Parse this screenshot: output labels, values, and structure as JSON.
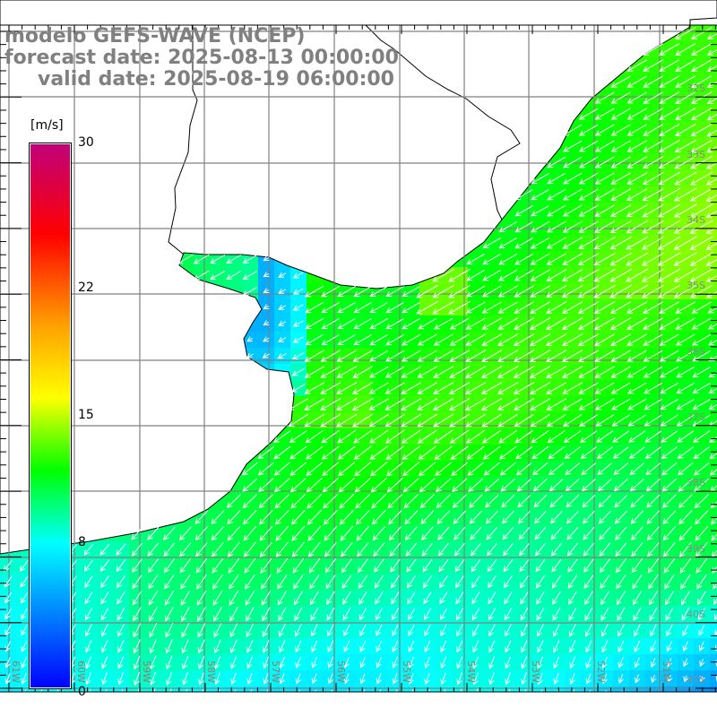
{
  "header": {
    "line1": "modelo GEFS-WAVE (NCEP)",
    "line2": "forecast date: 2025-08-13 00:00:00",
    "line3": "valid date: 2025-08-19 06:00:00"
  },
  "colorbar": {
    "unit": "[m/s]",
    "ticks": [
      "30",
      "22",
      "15",
      "8",
      "0"
    ],
    "tick_values": [
      30,
      22,
      15,
      8,
      0
    ],
    "range": [
      0,
      30
    ],
    "stops": [
      {
        "v": 0,
        "c": "#0000ff"
      },
      {
        "v": 8,
        "c": "#00ffff"
      },
      {
        "v": 12,
        "c": "#00ff00"
      },
      {
        "v": 16,
        "c": "#ffff00"
      },
      {
        "v": 20,
        "c": "#ffa000"
      },
      {
        "v": 25,
        "c": "#ff0000"
      },
      {
        "v": 30,
        "c": "#c0007a"
      }
    ]
  },
  "map": {
    "lat_labels": [
      "32S",
      "33S",
      "34S",
      "35S",
      "36S",
      "37S",
      "38S",
      "39S",
      "40S",
      "41S"
    ],
    "lon_labels": [
      "61W",
      "60W",
      "59W",
      "58W",
      "57W",
      "56W",
      "55W",
      "54W",
      "53W",
      "52W",
      "51W"
    ],
    "grid_color": "#808080",
    "land_color": "#ffffff",
    "coast_color": "#000000",
    "arrow_color": "#ffffff",
    "variable": "wind speed and direction"
  }
}
